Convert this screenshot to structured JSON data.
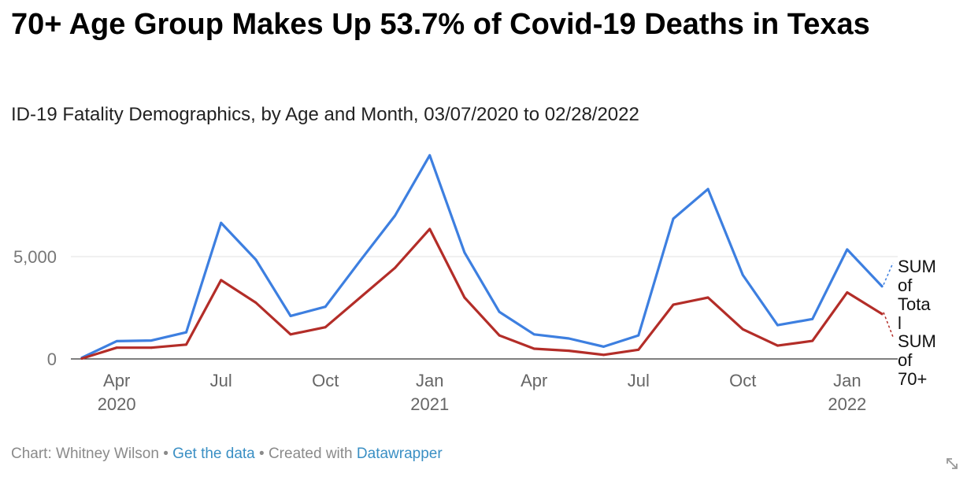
{
  "header": {
    "title": "70+ Age Group Makes Up 53.7% of Covid-19 Deaths in Texas",
    "subtitle": "ID-19 Fatality Demographics, by Age and Month, 03/07/2020 to 02/28/2022"
  },
  "footer": {
    "chart_prefix": "Chart: Whitney Wilson",
    "sep1": " • ",
    "get_data": "Get the data",
    "sep2": " • Created with ",
    "tool": "Datawrapper"
  },
  "colors": {
    "total": "#3d7fe0",
    "seventy": "#b32d28",
    "grid": "#e0e0e0"
  },
  "icons": {
    "resize": "resize-arrows-icon"
  },
  "chart_data": {
    "type": "line",
    "x": [
      "2020-03",
      "2020-04",
      "2020-05",
      "2020-06",
      "2020-07",
      "2020-08",
      "2020-09",
      "2020-10",
      "2020-11",
      "2020-12",
      "2021-01",
      "2021-02",
      "2021-03",
      "2021-04",
      "2021-05",
      "2021-06",
      "2021-07",
      "2021-08",
      "2021-09",
      "2021-10",
      "2021-11",
      "2021-12",
      "2022-01",
      "2022-02"
    ],
    "series": [
      {
        "name": "SUM of Total",
        "label_lines": [
          "SUM",
          "of",
          "Tota",
          "l"
        ],
        "color": "#3d7fe0",
        "values": [
          60,
          870,
          900,
          1300,
          6650,
          4850,
          2100,
          2550,
          4800,
          7000,
          9950,
          5200,
          2300,
          1200,
          1000,
          600,
          1150,
          6850,
          8300,
          4100,
          1650,
          1950,
          5350,
          3550
        ]
      },
      {
        "name": "SUM of 70+",
        "label_lines": [
          "SUM",
          "of",
          "70+"
        ],
        "color": "#b32d28",
        "values": [
          20,
          550,
          550,
          700,
          3850,
          2750,
          1200,
          1550,
          3000,
          4450,
          6350,
          3000,
          1150,
          500,
          400,
          200,
          450,
          2650,
          3000,
          1450,
          650,
          880,
          3250,
          2200
        ]
      }
    ],
    "x_ticks": [
      {
        "label": "Apr",
        "year": "2020",
        "date": "2020-04"
      },
      {
        "label": "Jul",
        "year": "",
        "date": "2020-07"
      },
      {
        "label": "Oct",
        "year": "",
        "date": "2020-10"
      },
      {
        "label": "Jan",
        "year": "2021",
        "date": "2021-01"
      },
      {
        "label": "Apr",
        "year": "",
        "date": "2021-04"
      },
      {
        "label": "Jul",
        "year": "",
        "date": "2021-07"
      },
      {
        "label": "Oct",
        "year": "",
        "date": "2021-10"
      },
      {
        "label": "Jan",
        "year": "2022",
        "date": "2022-01"
      }
    ],
    "y_ticks": [
      {
        "value": 0,
        "label": "0"
      },
      {
        "value": 5000,
        "label": "5,000"
      }
    ],
    "ylim": [
      0,
      10000
    ],
    "grid": true,
    "legend": "direct labels at line ends"
  }
}
